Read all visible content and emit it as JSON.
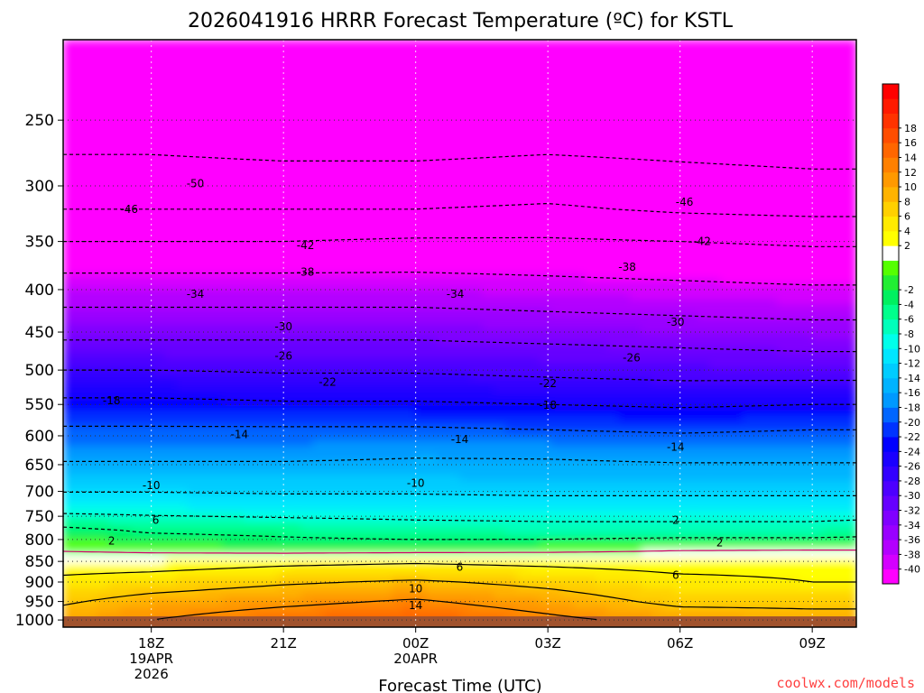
{
  "chart_data": {
    "type": "heatmap",
    "title": "2026041916 HRRR Forecast Temperature (ºC) for KSTL",
    "xlabel": "Forecast Time (UTC)",
    "ylabel": "",
    "x_start_hour": 16,
    "x_end_hour": 34,
    "x_ticks": [
      {
        "hour": 18,
        "lines": [
          "18Z",
          "19APR",
          "2026"
        ]
      },
      {
        "hour": 21,
        "lines": [
          "21Z"
        ]
      },
      {
        "hour": 24,
        "lines": [
          "00Z",
          "20APR"
        ]
      },
      {
        "hour": 27,
        "lines": [
          "03Z"
        ]
      },
      {
        "hour": 30,
        "lines": [
          "06Z"
        ]
      },
      {
        "hour": 33,
        "lines": [
          "09Z"
        ]
      }
    ],
    "y_scale": "log",
    "y_range": [
      1020,
      200
    ],
    "y_ticks": [
      250,
      300,
      350,
      400,
      450,
      500,
      550,
      600,
      650,
      700,
      750,
      800,
      850,
      900,
      950,
      1000
    ],
    "y_dotted_grid": [
      250,
      300,
      350,
      400,
      450,
      500,
      550,
      600,
      650,
      700,
      750,
      800,
      850,
      900,
      950,
      1000
    ],
    "x_grid": "dotted",
    "ground_below_hpa": 990,
    "legend": {
      "position": "right",
      "colors": [
        "#ff00ff",
        "#d400ff",
        "#b300ff",
        "#9900ff",
        "#8000ff",
        "#6600ff",
        "#4d00ff",
        "#3300ff",
        "#1a00ff",
        "#0000ff",
        "#0033ff",
        "#0066ff",
        "#0099ff",
        "#00b3ff",
        "#00ccff",
        "#00e6ff",
        "#00ffea",
        "#00ffbb",
        "#00ff8c",
        "#00f060",
        "#22ee33",
        "#55ff00",
        "#ffffff",
        "#ffff00",
        "#ffea00",
        "#ffd000",
        "#ffb300",
        "#ff9900",
        "#ff8000",
        "#ff6600",
        "#ff4d00",
        "#ff3300",
        "#ff1a00",
        "#ff0000"
      ],
      "labels": [
        "-40",
        "-38",
        "-36",
        "-34",
        "-32",
        "-30",
        "-28",
        "-26",
        "-24",
        "-22",
        "-20",
        "-18",
        "-16",
        "-14",
        "-12",
        "-10",
        "-8",
        "-6",
        "-4",
        "-2",
        "2",
        "4",
        "6",
        "8",
        "10",
        "12",
        "14",
        "16",
        "18"
      ]
    },
    "series": [
      {
        "x": [
          16,
          18,
          21,
          24,
          27,
          30,
          33,
          34
        ],
        "values": [
          [
            -51.5,
            -51.5,
            -52,
            -51.5,
            -51,
            -51.5,
            -52,
            -52
          ],
          [
            -50,
            -50,
            -50.5,
            -50.5,
            -50,
            -50.5,
            -51,
            -51
          ],
          [
            -46,
            -46,
            -46,
            -46,
            -45.5,
            -46.5,
            -47,
            -47
          ],
          [
            -42,
            -42,
            -42,
            -41.5,
            -41.5,
            -42,
            -42.5,
            -42.5
          ],
          [
            -37,
            -37,
            -37,
            -37,
            -37.5,
            -38,
            -38.5,
            -38.5
          ],
          [
            -33,
            -33,
            -33,
            -33,
            -33.5,
            -34,
            -34.5,
            -34.5
          ],
          [
            -29,
            -29,
            -29,
            -29,
            -29.5,
            -30,
            -30.5,
            -30.5
          ],
          [
            -25,
            -25,
            -25.5,
            -25.5,
            -26,
            -26.5,
            -26.5,
            -26.5
          ],
          [
            -21,
            -21,
            -21.5,
            -21.5,
            -22,
            -22.5,
            -22,
            -22
          ],
          [
            -17.5,
            -17.5,
            -17.5,
            -17.5,
            -18,
            -18.5,
            -18,
            -18
          ],
          [
            -15,
            -15,
            -15,
            -14.5,
            -14.5,
            -15,
            -15,
            -15
          ],
          [
            -11.5,
            -11.5,
            -11.5,
            -11.5,
            -12,
            -12,
            -12,
            -12
          ],
          [
            -8,
            -8,
            -8.5,
            -8.5,
            -8.5,
            -8.5,
            -8.5,
            -8.5
          ],
          [
            -1,
            -2.5,
            -3,
            -4,
            -4.5,
            -4.5,
            -4.5,
            -4
          ],
          [
            1,
            0.5,
            -0.5,
            -0.5,
            0,
            1,
            1,
            1
          ],
          [
            4,
            4,
            5,
            5.5,
            5,
            4.5,
            5,
            5
          ],
          [
            7,
            8,
            9.5,
            10.5,
            9,
            7,
            6,
            6
          ],
          [
            9.5,
            11.5,
            13,
            14.5,
            12,
            9,
            9,
            9
          ],
          [
            12,
            14,
            16.5,
            18,
            15,
            12.5,
            11.5,
            11.5
          ]
        ]
      }
    ],
    "y_levels": [
      220,
      275,
      320,
      350,
      390,
      430,
      470,
      510,
      550,
      590,
      630,
      680,
      730,
      780,
      815,
      850,
      900,
      950,
      1000
    ],
    "contour_labels": [
      {
        "text": "-50",
        "hour": 19.0,
        "hpa": 298
      },
      {
        "text": "-46",
        "hour": 17.5,
        "hpa": 320
      },
      {
        "text": "-46",
        "hour": 30.1,
        "hpa": 314
      },
      {
        "text": "-42",
        "hour": 21.5,
        "hpa": 354
      },
      {
        "text": "-42",
        "hour": 30.5,
        "hpa": 350
      },
      {
        "text": "-38",
        "hour": 21.5,
        "hpa": 381
      },
      {
        "text": "-38",
        "hour": 28.8,
        "hpa": 376
      },
      {
        "text": "-34",
        "hour": 19.0,
        "hpa": 405
      },
      {
        "text": "-34",
        "hour": 24.9,
        "hpa": 405
      },
      {
        "text": "-30",
        "hour": 21.0,
        "hpa": 443
      },
      {
        "text": "-30",
        "hour": 29.9,
        "hpa": 438
      },
      {
        "text": "-26",
        "hour": 21.0,
        "hpa": 481
      },
      {
        "text": "-26",
        "hour": 28.9,
        "hpa": 483
      },
      {
        "text": "-22",
        "hour": 22.0,
        "hpa": 517
      },
      {
        "text": "-22",
        "hour": 27.0,
        "hpa": 519
      },
      {
        "text": "-18",
        "hour": 17.1,
        "hpa": 544
      },
      {
        "text": "-18",
        "hour": 27.0,
        "hpa": 551
      },
      {
        "text": "-14",
        "hour": 20.0,
        "hpa": 598
      },
      {
        "text": "-14",
        "hour": 25.0,
        "hpa": 606
      },
      {
        "text": "-14",
        "hour": 29.9,
        "hpa": 619
      },
      {
        "text": "-10",
        "hour": 18.0,
        "hpa": 689
      },
      {
        "text": "-10",
        "hour": 24.0,
        "hpa": 684
      },
      {
        "text": "6",
        "hour": 18.1,
        "hpa": 758
      },
      {
        "text": "2",
        "hour": 17.1,
        "hpa": 803
      },
      {
        "text": "2",
        "hour": 29.9,
        "hpa": 758
      },
      {
        "text": "2",
        "hour": 30.9,
        "hpa": 807
      },
      {
        "text": "6",
        "hour": 25.0,
        "hpa": 864
      },
      {
        "text": "6",
        "hour": 29.9,
        "hpa": 883
      },
      {
        "text": "10",
        "hour": 24.0,
        "hpa": 917
      },
      {
        "text": "14",
        "hour": 24.0,
        "hpa": 960
      }
    ]
  },
  "credit": "coolwx.com/models"
}
